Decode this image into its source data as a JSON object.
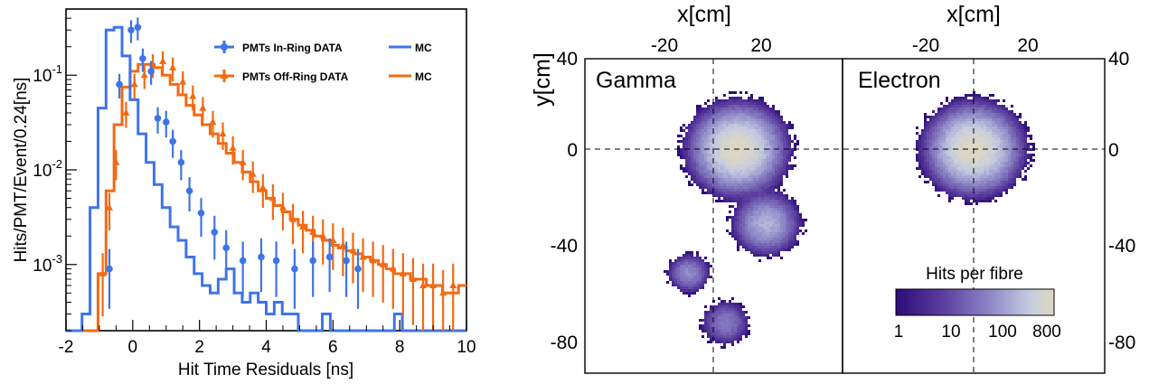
{
  "chart_data": [
    {
      "type": "line",
      "xlabel": "Hit Time Residuals [ns]",
      "ylabel": "Hits/PMT/Event/0.24[ns]",
      "xlim": [
        -2,
        10
      ],
      "ylim": [
        0.0002,
        0.5
      ],
      "yscale": "log",
      "xticks": [
        "-2",
        "0",
        "2",
        "4",
        "6",
        "8",
        "10"
      ],
      "yticks": [
        "10^-3",
        "10^-2",
        "10^-1"
      ],
      "colors": {
        "in_ring": "#3f74e8",
        "off_ring": "#f26a12"
      },
      "legend": {
        "placement": "top-right",
        "data_in": "PMTs In-Ring DATA",
        "mc_in": "MC",
        "data_off": "PMTs Off-Ring DATA",
        "mc_off": "MC"
      },
      "bin_edges_start": -2.0,
      "bin_width": 0.24,
      "series": [
        {
          "name": "PMTs In-Ring DATA",
          "kind": "points",
          "x": [
            -0.7,
            -0.4,
            -0.05,
            0.15,
            0.3,
            0.55,
            0.75,
            1.0,
            1.2,
            1.45,
            1.7,
            2.05,
            2.45,
            2.8,
            3.3,
            3.85,
            4.3,
            4.85,
            5.4,
            5.9,
            6.4,
            6.75
          ],
          "y": [
            0.0009,
            0.08,
            0.3,
            0.32,
            0.15,
            0.11,
            0.035,
            0.032,
            0.02,
            0.012,
            0.006,
            0.0035,
            0.0022,
            0.0015,
            0.0011,
            0.0012,
            0.0011,
            0.0009,
            0.0011,
            0.0012,
            0.0011,
            0.0009
          ]
        },
        {
          "name": "MC",
          "kind": "step",
          "y": [
            0.0002,
            0.0002,
            0.0003,
            0.004,
            0.045,
            0.3,
            0.32,
            0.16,
            0.055,
            0.024,
            0.012,
            0.007,
            0.004,
            0.0025,
            0.0018,
            0.0012,
            0.0008,
            0.0006,
            0.0005,
            0.0007,
            0.0009,
            0.0005,
            0.0004,
            0.0005,
            0.0004,
            0.0003,
            0.0004,
            0.0003,
            0.0003,
            0.0002,
            0.0002,
            0.0002,
            0.0003,
            0.0002,
            0.0002,
            0.0002,
            0.0002,
            0.0002,
            0.0002,
            0.0002,
            0.0002,
            0.0003,
            0.0002,
            0.0002,
            0.0002,
            0.0002,
            0.0002,
            0.0002,
            0.0002,
            0.0002
          ]
        },
        {
          "name": "PMTs Off-Ring DATA",
          "kind": "points",
          "x": [
            -0.9,
            -0.7,
            -0.5,
            -0.2,
            0.05,
            0.35,
            0.6,
            0.9,
            1.2,
            1.5,
            1.8,
            2.1,
            2.4,
            2.7,
            3.0,
            3.3,
            3.6,
            3.9,
            4.2,
            4.5,
            4.8,
            5.1,
            5.4,
            5.7,
            6.0,
            6.3,
            6.6,
            6.9,
            7.2,
            7.5,
            7.8,
            8.1,
            8.4,
            8.7,
            9.0,
            9.3,
            9.6
          ],
          "y": [
            0.0008,
            0.004,
            0.012,
            0.04,
            0.08,
            0.1,
            0.13,
            0.14,
            0.12,
            0.085,
            0.06,
            0.045,
            0.032,
            0.024,
            0.017,
            0.012,
            0.009,
            0.0065,
            0.005,
            0.004,
            0.003,
            0.0025,
            0.0022,
            0.002,
            0.0018,
            0.0016,
            0.0014,
            0.0012,
            0.0011,
            0.001,
            0.0009,
            0.0008,
            0.0007,
            0.0006,
            0.0006,
            0.0005,
            0.0006
          ]
        },
        {
          "name": "MC",
          "kind": "step",
          "y": [
            0.0002,
            0.0002,
            0.0002,
            0.0002,
            0.0008,
            0.006,
            0.03,
            0.075,
            0.11,
            0.13,
            0.13,
            0.12,
            0.1,
            0.08,
            0.062,
            0.048,
            0.038,
            0.03,
            0.024,
            0.019,
            0.015,
            0.012,
            0.0095,
            0.0075,
            0.006,
            0.005,
            0.0042,
            0.0036,
            0.003,
            0.0026,
            0.0023,
            0.002,
            0.0018,
            0.0016,
            0.0015,
            0.0014,
            0.0013,
            0.0012,
            0.0011,
            0.001,
            0.0009,
            0.0008,
            0.0008,
            0.0007,
            0.0007,
            0.0006,
            0.0006,
            0.0005,
            0.0005,
            0.0006
          ]
        }
      ]
    },
    {
      "type": "heatmap",
      "xlabel": "x[cm]",
      "ylabel": "y[cm]",
      "xlim": [
        -40,
        40
      ],
      "ylim": [
        -95,
        45
      ],
      "xticks": [
        "-20",
        "20"
      ],
      "yticks": [
        "40",
        "0",
        "-40",
        "-80"
      ],
      "colorbar": {
        "title": "Hits per fibre",
        "scale": "log",
        "range": [
          1,
          800
        ],
        "ticks": [
          "1",
          "10",
          "100",
          "800"
        ],
        "colors": [
          "#2c0c7a",
          "#5b3e9e",
          "#8e88c8",
          "#c6cce0",
          "#ded8c0"
        ]
      },
      "panels": [
        {
          "title": "Gamma",
          "clusters": [
            {
              "cx": 10,
              "cy": 0,
              "spread": 12,
              "peak": 800
            },
            {
              "cx": 22,
              "cy": -33,
              "spread": 9,
              "peak": 150
            },
            {
              "cx": -10,
              "cy": -55,
              "spread": 6,
              "peak": 60
            },
            {
              "cx": 5,
              "cy": -77,
              "spread": 7,
              "peak": 40
            }
          ]
        },
        {
          "title": "Electron",
          "clusters": [
            {
              "cx": 0,
              "cy": 0,
              "spread": 12,
              "peak": 800
            }
          ]
        }
      ]
    }
  ]
}
